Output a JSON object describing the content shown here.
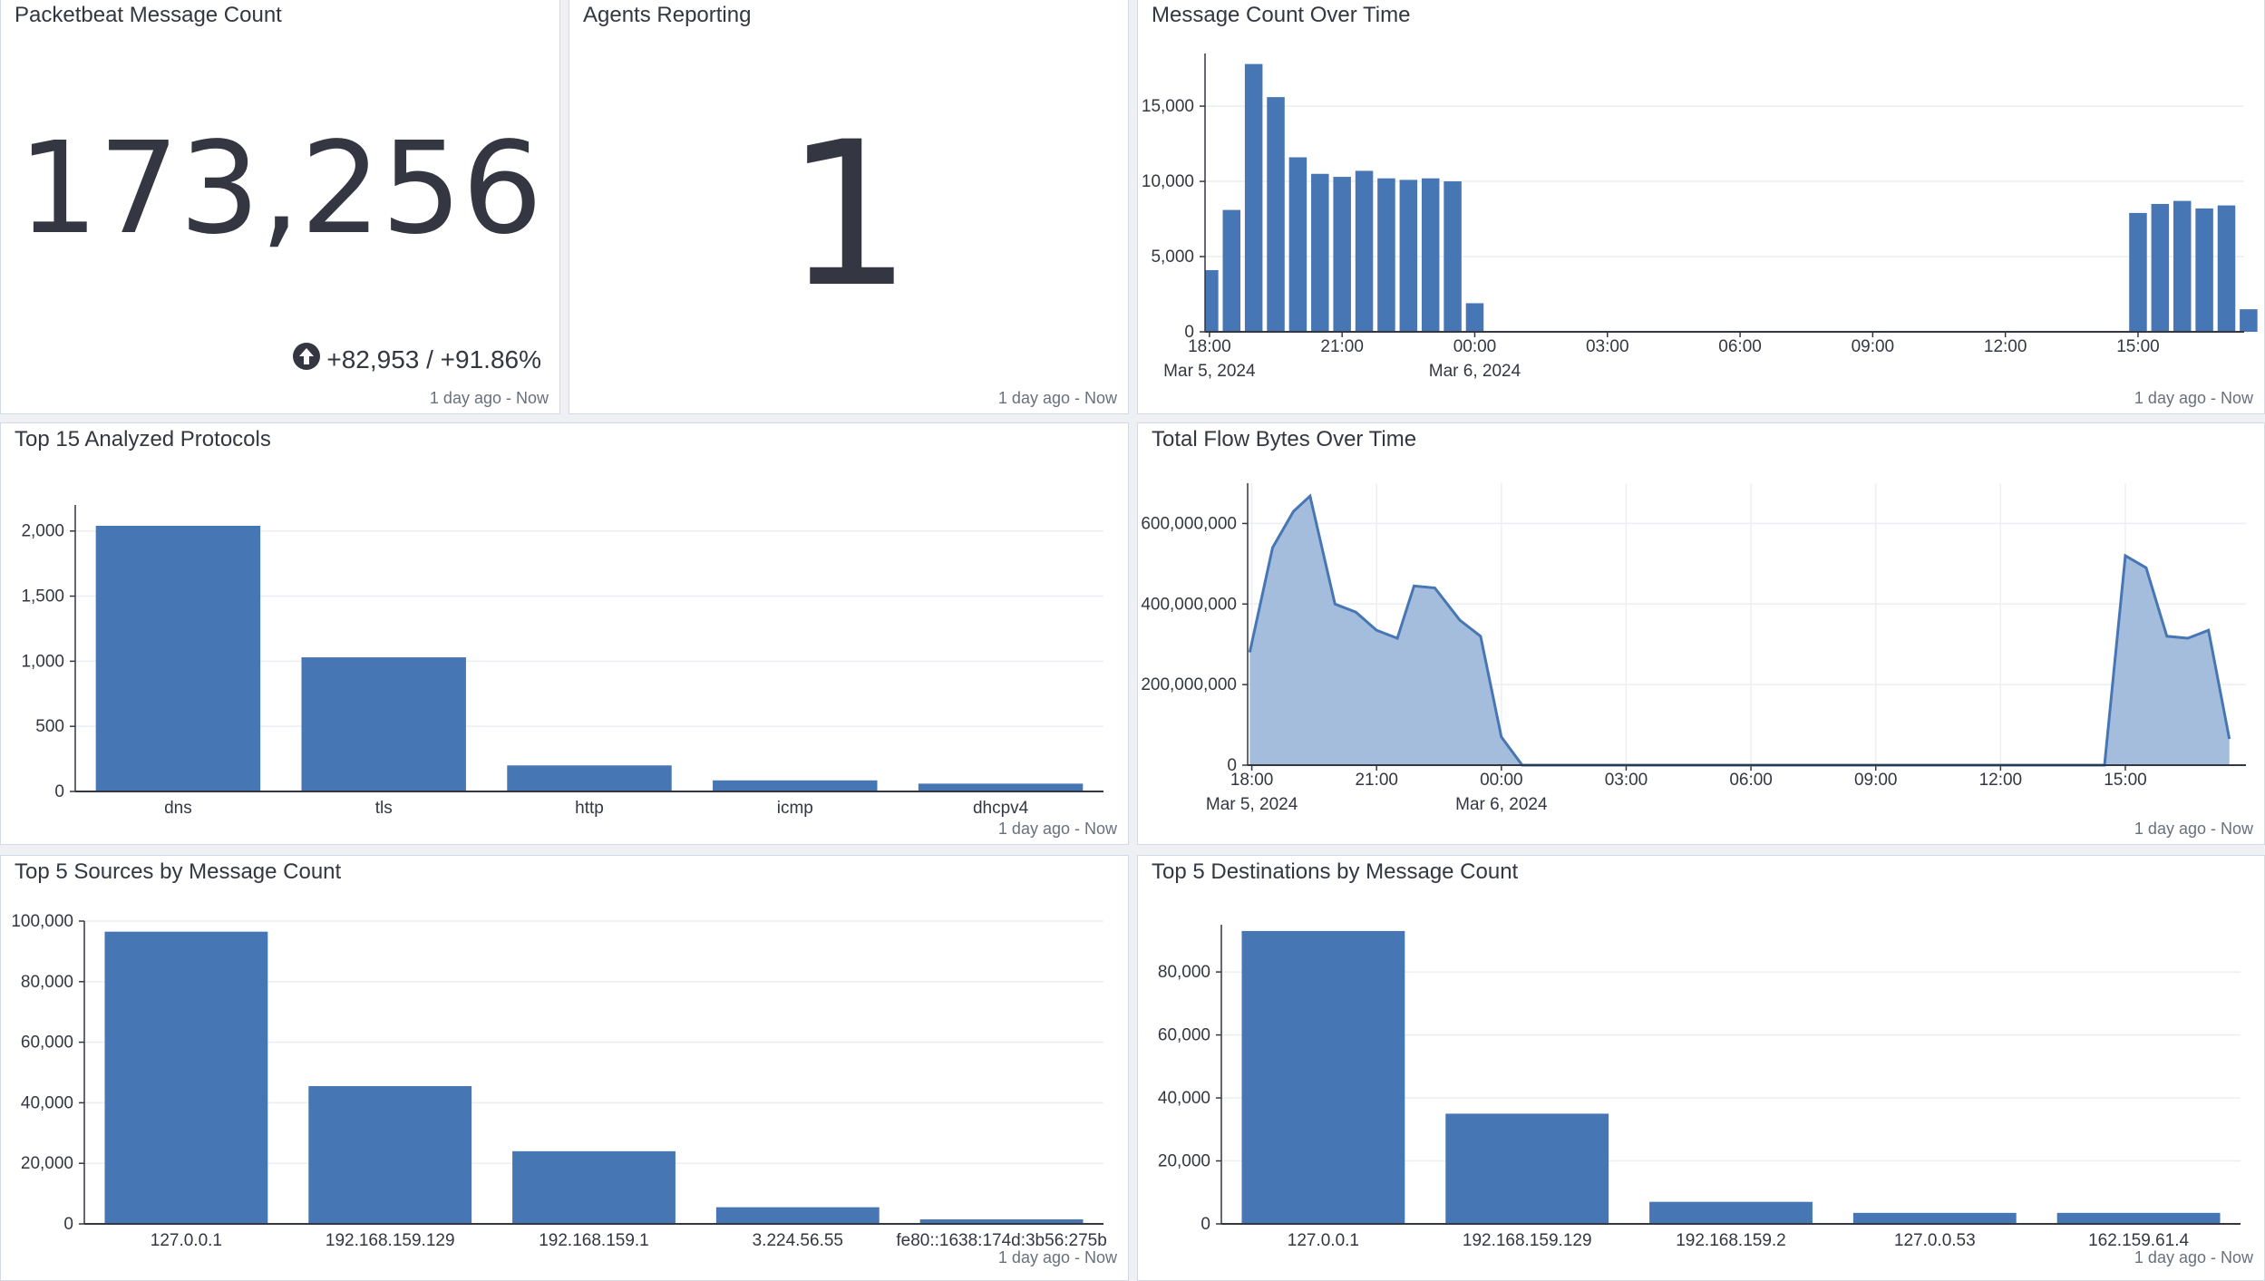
{
  "colors": {
    "bar": "#4676b3",
    "area_fill": "#9fb9db",
    "area_line": "#4676b3",
    "grid": "#eceef2",
    "axis": "#343741"
  },
  "panels": {
    "message_count": {
      "title": "Packetbeat Message Count",
      "value": "173,256",
      "trend_icon": "arrow-up-circle-icon",
      "trend": "+82,953 / +91.86%",
      "time": "1 day ago - Now"
    },
    "agents": {
      "title": "Agents Reporting",
      "value": "1",
      "time": "1 day ago - Now"
    },
    "msg_over_time": {
      "title": "Message Count Over Time",
      "time": "1 day ago - Now"
    },
    "protocols": {
      "title": "Top 15 Analyzed Protocols",
      "time": "1 day ago - Now"
    },
    "flow_bytes": {
      "title": "Total Flow Bytes Over Time",
      "time": "1 day ago - Now"
    },
    "sources": {
      "title": "Top 5 Sources by Message Count",
      "time": "1 day ago - Now"
    },
    "destinations": {
      "title": "Top 5 Destinations by Message Count",
      "time": "1 day ago - Now"
    }
  },
  "chart_data": [
    {
      "id": "msg_over_time",
      "type": "bar",
      "x_unit": "hours since 18:00 Mar 5, 2024",
      "x_ticks": [
        {
          "x": 0,
          "label": "18:00",
          "sub": "Mar 5, 2024"
        },
        {
          "x": 3,
          "label": "21:00",
          "sub": ""
        },
        {
          "x": 6,
          "label": "00:00",
          "sub": "Mar 6, 2024"
        },
        {
          "x": 9,
          "label": "03:00",
          "sub": ""
        },
        {
          "x": 12,
          "label": "06:00",
          "sub": ""
        },
        {
          "x": 15,
          "label": "09:00",
          "sub": ""
        },
        {
          "x": 18,
          "label": "12:00",
          "sub": ""
        },
        {
          "x": 21,
          "label": "15:00",
          "sub": ""
        }
      ],
      "xlim": [
        -0.1,
        23.4
      ],
      "bar_width": 0.4,
      "bars": [
        {
          "x": 0.0,
          "y": 4100
        },
        {
          "x": 0.5,
          "y": 8100
        },
        {
          "x": 1.0,
          "y": 17800
        },
        {
          "x": 1.5,
          "y": 15600
        },
        {
          "x": 2.0,
          "y": 11600
        },
        {
          "x": 2.5,
          "y": 10500
        },
        {
          "x": 3.0,
          "y": 10300
        },
        {
          "x": 3.5,
          "y": 10700
        },
        {
          "x": 4.0,
          "y": 10200
        },
        {
          "x": 4.5,
          "y": 10100
        },
        {
          "x": 5.0,
          "y": 10200
        },
        {
          "x": 5.5,
          "y": 10000
        },
        {
          "x": 6.0,
          "y": 1900
        },
        {
          "x": 21.0,
          "y": 7900
        },
        {
          "x": 21.5,
          "y": 8500
        },
        {
          "x": 22.0,
          "y": 8700
        },
        {
          "x": 22.5,
          "y": 8200
        },
        {
          "x": 23.0,
          "y": 8400
        },
        {
          "x": 23.5,
          "y": 1500
        }
      ],
      "y_ticks": [
        0,
        5000,
        10000,
        15000
      ],
      "y_tick_labels": [
        "0",
        "5,000",
        "10,000",
        "15,000"
      ],
      "ylim": [
        0,
        18500
      ]
    },
    {
      "id": "protocols",
      "type": "bar",
      "categories": [
        "dns",
        "tls",
        "http",
        "icmp",
        "dhcpv4"
      ],
      "values": [
        2040,
        1030,
        200,
        85,
        60
      ],
      "y_ticks": [
        0,
        500,
        1000,
        1500,
        2000
      ],
      "y_tick_labels": [
        "0",
        "500",
        "1,000",
        "1,500",
        "2,000"
      ],
      "ylim": [
        0,
        2200
      ]
    },
    {
      "id": "flow_bytes",
      "type": "area",
      "x_unit": "hours since 18:00 Mar 5, 2024",
      "x_ticks": [
        {
          "x": 0,
          "label": "18:00",
          "sub": "Mar 5, 2024"
        },
        {
          "x": 3,
          "label": "21:00",
          "sub": ""
        },
        {
          "x": 6,
          "label": "00:00",
          "sub": "Mar 6, 2024"
        },
        {
          "x": 9,
          "label": "03:00",
          "sub": ""
        },
        {
          "x": 12,
          "label": "06:00",
          "sub": ""
        },
        {
          "x": 15,
          "label": "09:00",
          "sub": ""
        },
        {
          "x": 18,
          "label": "12:00",
          "sub": ""
        },
        {
          "x": 21,
          "label": "15:00",
          "sub": ""
        }
      ],
      "xlim": [
        -0.1,
        23.9
      ],
      "points": [
        [
          -0.05,
          280000000
        ],
        [
          0.5,
          540000000
        ],
        [
          1.0,
          630000000
        ],
        [
          1.4,
          668000000
        ],
        [
          2.0,
          400000000
        ],
        [
          2.5,
          380000000
        ],
        [
          3.0,
          335000000
        ],
        [
          3.5,
          315000000
        ],
        [
          3.9,
          445000000
        ],
        [
          4.4,
          440000000
        ],
        [
          5.0,
          360000000
        ],
        [
          5.5,
          320000000
        ],
        [
          6.0,
          70000000
        ],
        [
          6.5,
          0
        ],
        [
          20.5,
          0
        ],
        [
          21.0,
          520000000
        ],
        [
          21.5,
          490000000
        ],
        [
          22.0,
          320000000
        ],
        [
          22.5,
          315000000
        ],
        [
          23.0,
          335000000
        ],
        [
          23.5,
          65000000
        ]
      ],
      "y_ticks": [
        0,
        200000000,
        400000000,
        600000000
      ],
      "y_tick_labels": [
        "0",
        "200,000,000",
        "400,000,000",
        "600,000,000"
      ],
      "ylim": [
        0,
        700000000
      ]
    },
    {
      "id": "sources",
      "type": "bar",
      "categories": [
        "127.0.0.1",
        "192.168.159.129",
        "192.168.159.1",
        "3.224.56.55",
        "fe80::1638:174d:3b56:275b"
      ],
      "values": [
        96500,
        45500,
        24000,
        5500,
        1500
      ],
      "y_ticks": [
        0,
        20000,
        40000,
        60000,
        80000,
        100000
      ],
      "y_tick_labels": [
        "0",
        "20,000",
        "40,000",
        "60,000",
        "80,000",
        "100,000"
      ],
      "ylim": [
        0,
        100000
      ]
    },
    {
      "id": "destinations",
      "type": "bar",
      "categories": [
        "127.0.0.1",
        "192.168.159.129",
        "192.168.159.2",
        "127.0.0.53",
        "162.159.61.4"
      ],
      "values": [
        93000,
        35000,
        7000,
        3500,
        3500
      ],
      "y_ticks": [
        0,
        20000,
        40000,
        60000,
        80000
      ],
      "y_tick_labels": [
        "0",
        "20,000",
        "40,000",
        "60,000",
        "80,000"
      ],
      "ylim": [
        0,
        95000
      ]
    }
  ]
}
